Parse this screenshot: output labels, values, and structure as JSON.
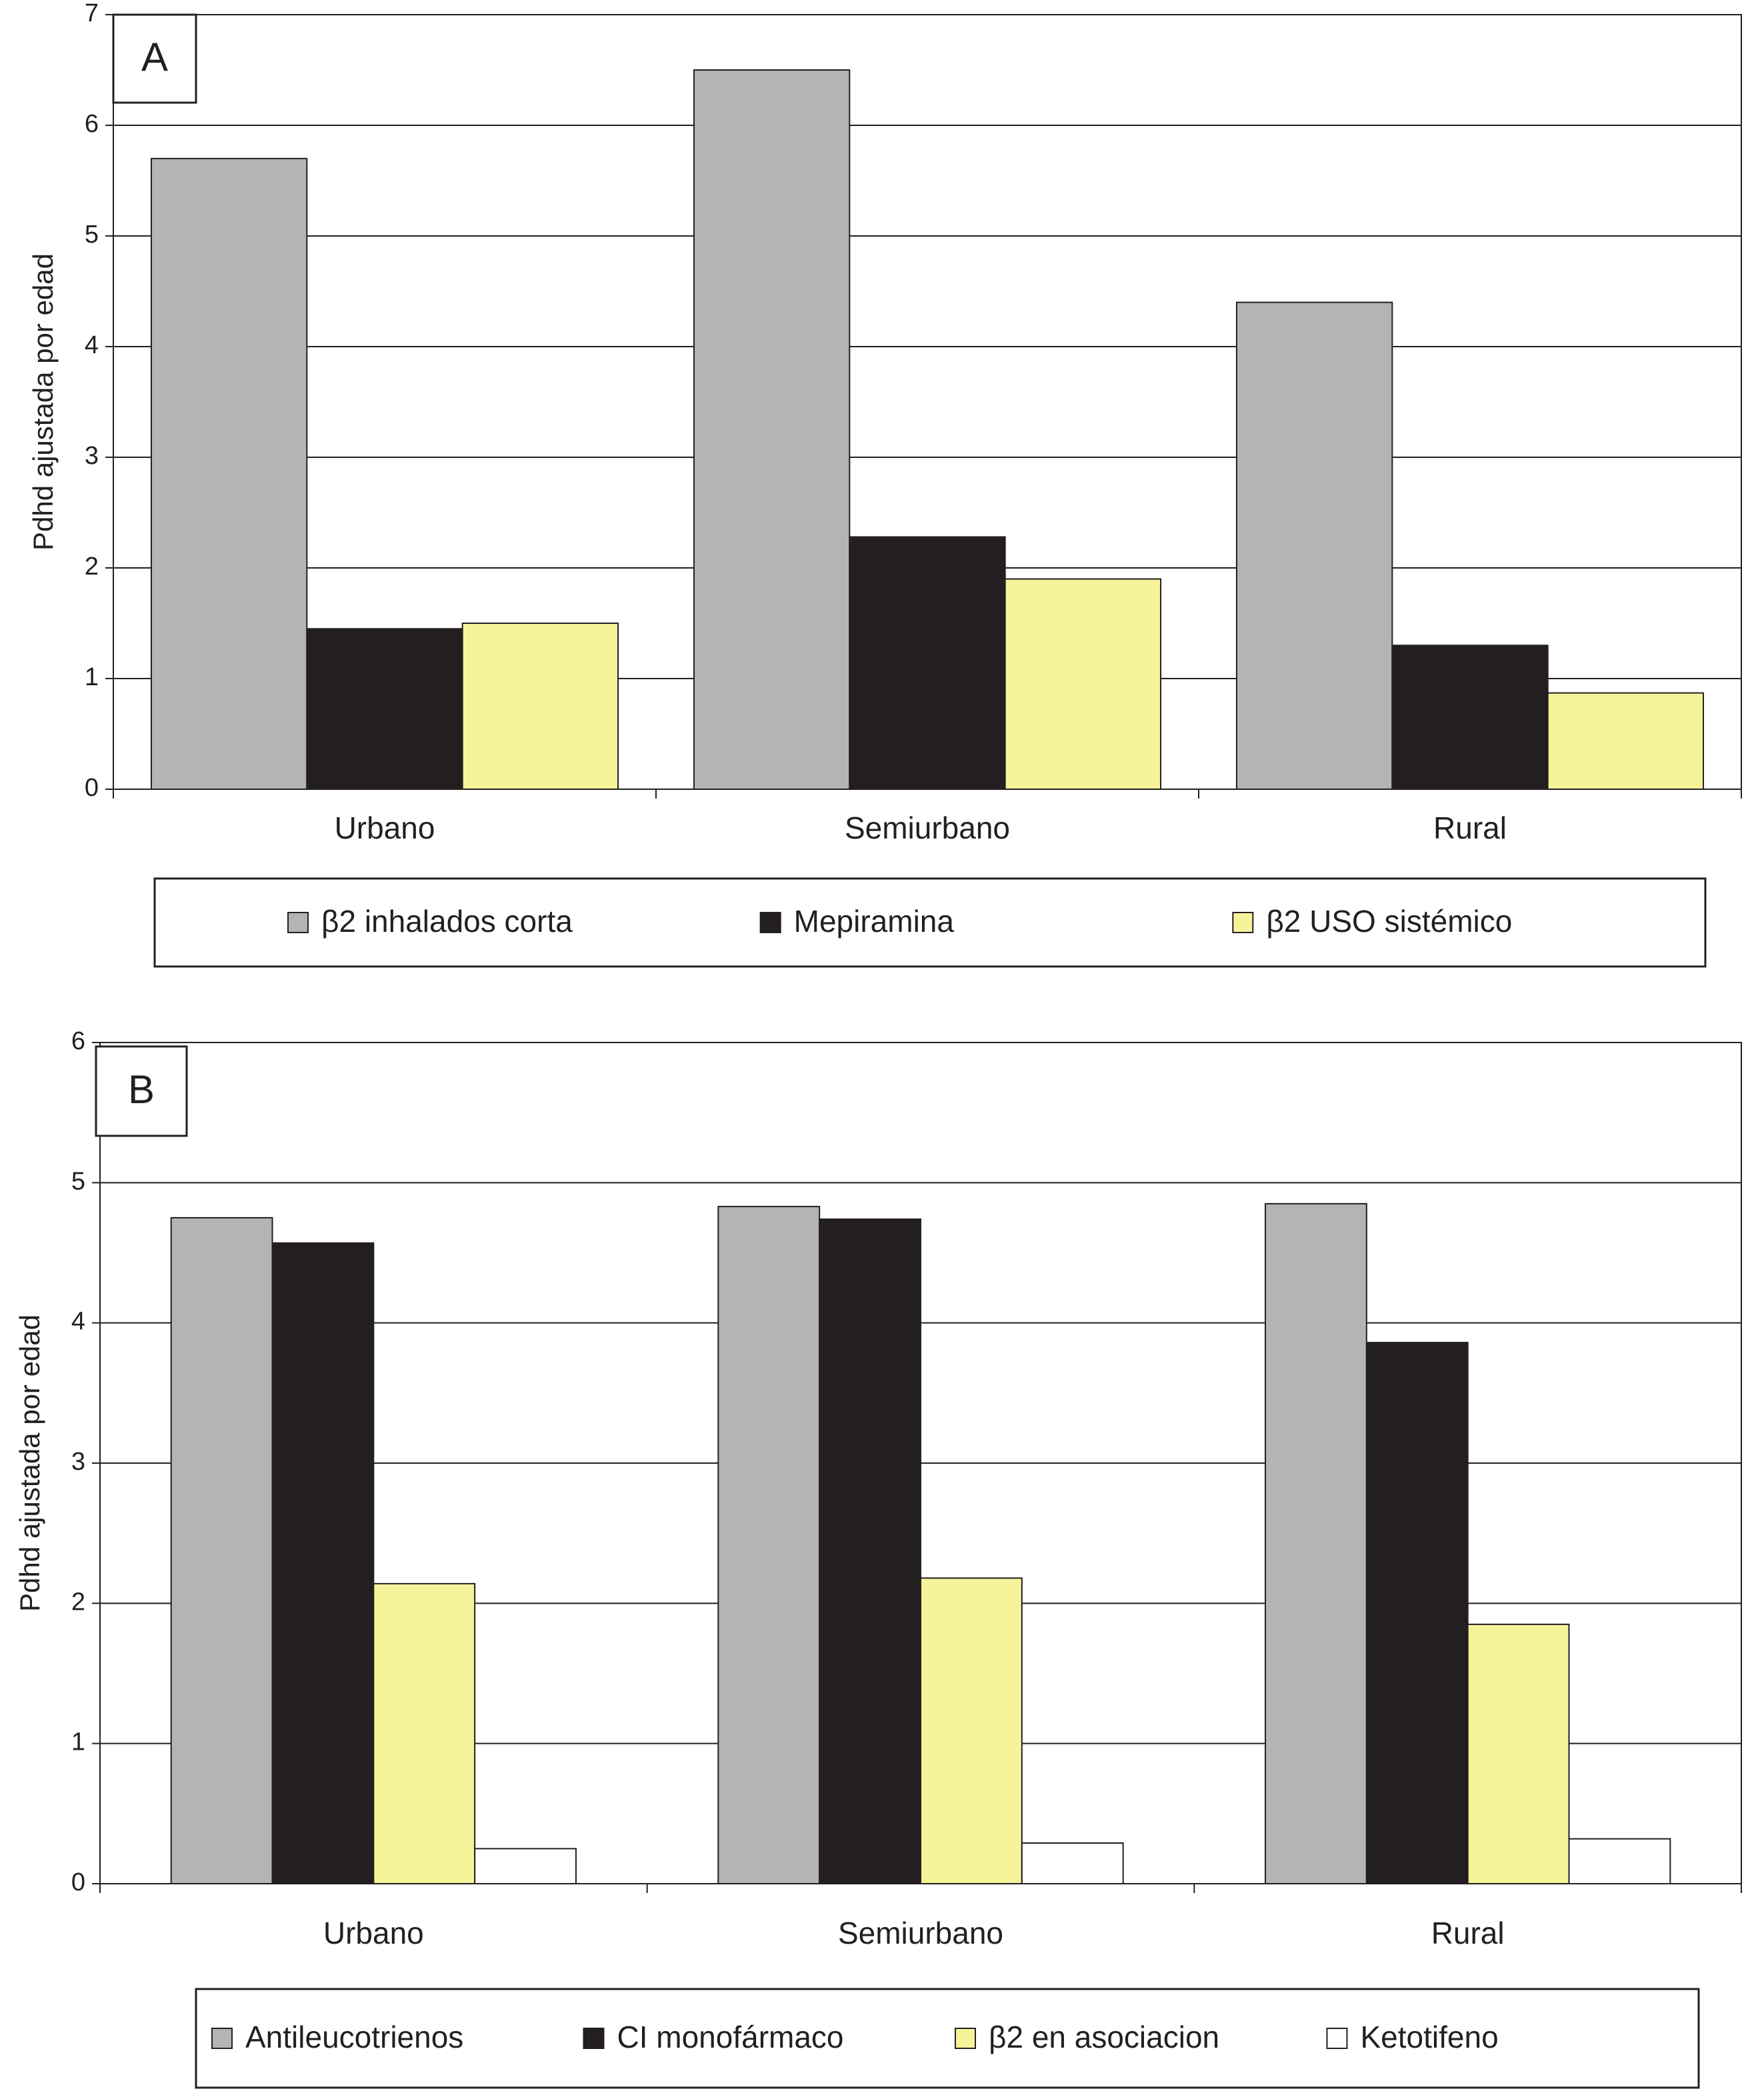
{
  "chart_data": [
    {
      "type": "bar",
      "panel": "A",
      "y_label": "Pdhd ajustada por edad",
      "categories": [
        "Urbano",
        "Semiurbano",
        "Rural"
      ],
      "series": [
        {
          "name": "β2 inhalados corta",
          "color": "#b3b4b6",
          "values": [
            5.7,
            6.5,
            4.4
          ]
        },
        {
          "name": "Mepiramina",
          "color": "#231f20",
          "values": [
            1.45,
            2.28,
            1.3
          ]
        },
        {
          "name": "β2 USO sistémico",
          "color": "#f7f39a",
          "values": [
            1.5,
            1.9,
            0.87
          ]
        }
      ],
      "ylim": [
        0,
        7
      ],
      "yticks": [
        0,
        1,
        2,
        3,
        4,
        5,
        6,
        7
      ],
      "grid": true
    },
    {
      "type": "bar",
      "panel": "B",
      "y_label": "Pdhd ajustada por edad",
      "categories": [
        "Urbano",
        "Semiurbano",
        "Rural"
      ],
      "series": [
        {
          "name": "Antileucotrienos",
          "color": "#b3b4b6",
          "values": [
            4.75,
            4.83,
            4.85
          ]
        },
        {
          "name": "CI  monofármaco",
          "color": "#231f20",
          "values": [
            4.57,
            4.74,
            3.86
          ]
        },
        {
          "name": "β2 en asociacion",
          "color": "#f7f39a",
          "values": [
            2.14,
            2.18,
            1.85
          ]
        },
        {
          "name": "Ketotifeno",
          "color": "#ffffff",
          "values": [
            0.25,
            0.29,
            0.32
          ]
        }
      ],
      "ylim": [
        0,
        6
      ],
      "yticks": [
        0,
        1,
        2,
        3,
        4,
        5,
        6
      ],
      "grid": true
    }
  ]
}
